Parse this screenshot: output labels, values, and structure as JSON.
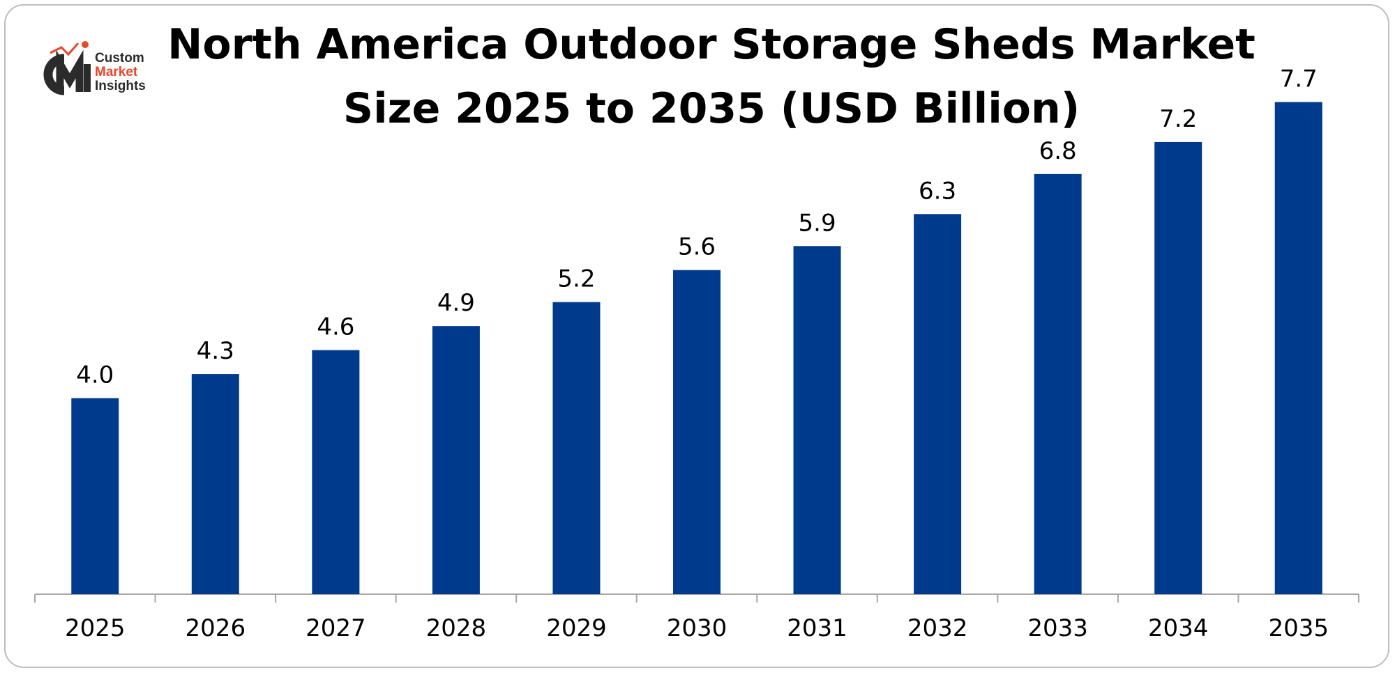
{
  "logo": {
    "monogram": "CMI",
    "line1": "Custom",
    "line2": "Market",
    "line3": "Insights",
    "colors": {
      "dark": "#2b2b2b",
      "accent": "#e8472b"
    }
  },
  "colors": {
    "bar": "#003a8c",
    "axis": "#a6a6a6",
    "text": "#000000"
  },
  "chart_data": {
    "type": "bar",
    "title_line1": "North America Outdoor Storage Sheds Market",
    "title_line2": "Size 2025 to 2035 (USD Billion)",
    "categories": [
      "2025",
      "2026",
      "2027",
      "2028",
      "2029",
      "2030",
      "2031",
      "2032",
      "2033",
      "2034",
      "2035"
    ],
    "values": [
      4.0,
      4.3,
      4.6,
      4.9,
      5.2,
      5.6,
      5.9,
      6.3,
      6.8,
      7.2,
      7.7
    ],
    "value_labels": [
      "4.0",
      "4.3",
      "4.6",
      "4.9",
      "5.2",
      "5.6",
      "5.9",
      "6.3",
      "6.8",
      "7.2",
      "7.7"
    ],
    "xlabel": "",
    "ylabel": "",
    "ylim": [
      1.55,
      8.0
    ],
    "grid": false,
    "legend": "none"
  }
}
